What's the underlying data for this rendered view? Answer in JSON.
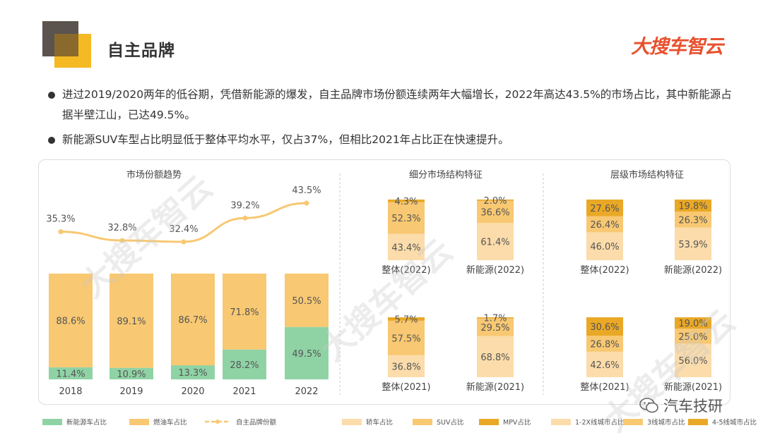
{
  "header": {
    "title": "自主品牌",
    "brand_logo": "大搜车智云"
  },
  "bullets": [
    "进过2019/2020两年的低谷期，凭借新能源的爆发，自主品牌市场份额连续两年大幅增长，2022年高达43.5%的市场占比，其中新能源占据半壁江山，已达49.5%。",
    "新能源SUV车型占比明显低于整体平均水平，仅占37%，但相比2021年占比正在快速提升。"
  ],
  "watermark": "大搜车智云",
  "wechat_label": "汽车技研",
  "colors": {
    "green": "#8fd3a5",
    "gold": "#f8c872",
    "line": "#f8c872",
    "light": "#fbdcaa",
    "mid": "#f8c872",
    "dark": "#e9a826"
  },
  "chart_data": [
    {
      "type": "bar",
      "stacked": true,
      "title": "市场份额趋势",
      "categories": [
        "2018",
        "2019",
        "2020",
        "2021",
        "2022"
      ],
      "series": [
        {
          "name": "新能源车占比",
          "values": [
            11.4,
            10.9,
            13.3,
            28.2,
            49.5
          ],
          "labels": [
            "11.4%",
            "10.9%",
            "13.3%",
            "28.2%",
            "49.5%"
          ]
        },
        {
          "name": "燃油车占比",
          "values": [
            88.6,
            89.1,
            86.7,
            71.8,
            50.5
          ],
          "labels": [
            "88.6%",
            "89.1%",
            "86.7%",
            "71.8%",
            "50.5%"
          ]
        }
      ],
      "line": {
        "name": "自主品牌份额",
        "values": [
          35.3,
          32.8,
          32.4,
          39.2,
          43.5
        ],
        "labels": [
          "35.3%",
          "32.8%",
          "32.4%",
          "39.2%",
          "43.5%"
        ]
      },
      "ylim": [
        0,
        100
      ]
    },
    {
      "type": "bar",
      "stacked": true,
      "title": "细分市场结构特征",
      "categories": [
        "整体(2022)",
        "新能源(2022)",
        "整体(2021)",
        "新能源(2021)"
      ],
      "series": [
        {
          "name": "轿车占比",
          "values": [
            43.4,
            61.4,
            36.8,
            68.8
          ],
          "labels": [
            "43.4%",
            "61.4%",
            "36.8%",
            "68.8%"
          ]
        },
        {
          "name": "SUV占比",
          "values": [
            52.3,
            36.6,
            57.5,
            29.5
          ],
          "labels": [
            "52.3%",
            "36.6%",
            "57.5%",
            "29.5%"
          ]
        },
        {
          "name": "MPV占比",
          "values": [
            4.3,
            2.0,
            5.7,
            1.7
          ],
          "labels": [
            "4.3%",
            "2.0%",
            "5.7%",
            "1.7%"
          ]
        }
      ],
      "ylim": [
        0,
        100
      ]
    },
    {
      "type": "bar",
      "stacked": true,
      "title": "层级市场结构特征",
      "categories": [
        "整体(2022)",
        "新能源(2022)",
        "整体(2021)",
        "新能源(2021)"
      ],
      "series": [
        {
          "name": "1-2X线城市占比",
          "values": [
            46.0,
            53.9,
            42.6,
            56.0
          ],
          "labels": [
            "46.0%",
            "53.9%",
            "42.6%",
            "56.0%"
          ]
        },
        {
          "name": "3线城市占比",
          "values": [
            26.4,
            26.3,
            26.8,
            25.0
          ],
          "labels": [
            "26.4%",
            "26.3%",
            "26.8%",
            "25.0%"
          ]
        },
        {
          "name": "4-5线城市占比",
          "values": [
            27.6,
            19.8,
            30.6,
            19.0
          ],
          "labels": [
            "27.6%",
            "19.8%",
            "30.6%",
            "19.0%"
          ]
        }
      ],
      "ylim": [
        0,
        100
      ]
    }
  ]
}
